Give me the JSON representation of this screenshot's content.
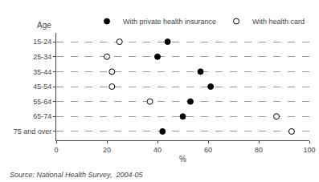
{
  "chart_data": {
    "type": "dot",
    "categories": [
      "15-24",
      "25-34",
      "35-44",
      "45-54",
      "55-64",
      "65-74",
      "75 and over"
    ],
    "series": [
      {
        "name": "With private health insurance",
        "color": "black",
        "marker": "circle",
        "values": [
          44,
          40,
          57,
          61,
          53,
          50,
          42
        ]
      },
      {
        "name": "With health card",
        "color": "white",
        "marker": "circle",
        "values": [
          25,
          20,
          22,
          22,
          37,
          87,
          93
        ]
      }
    ],
    "xlabel": "%",
    "ylabel": "Age",
    "xlim": [
      0,
      100
    ],
    "xticks": [
      0,
      20,
      40,
      60,
      80,
      100
    ],
    "grid": "y",
    "legend": "upper right",
    "annotations": [
      "Source: National Health Survey,  2004-05"
    ]
  }
}
